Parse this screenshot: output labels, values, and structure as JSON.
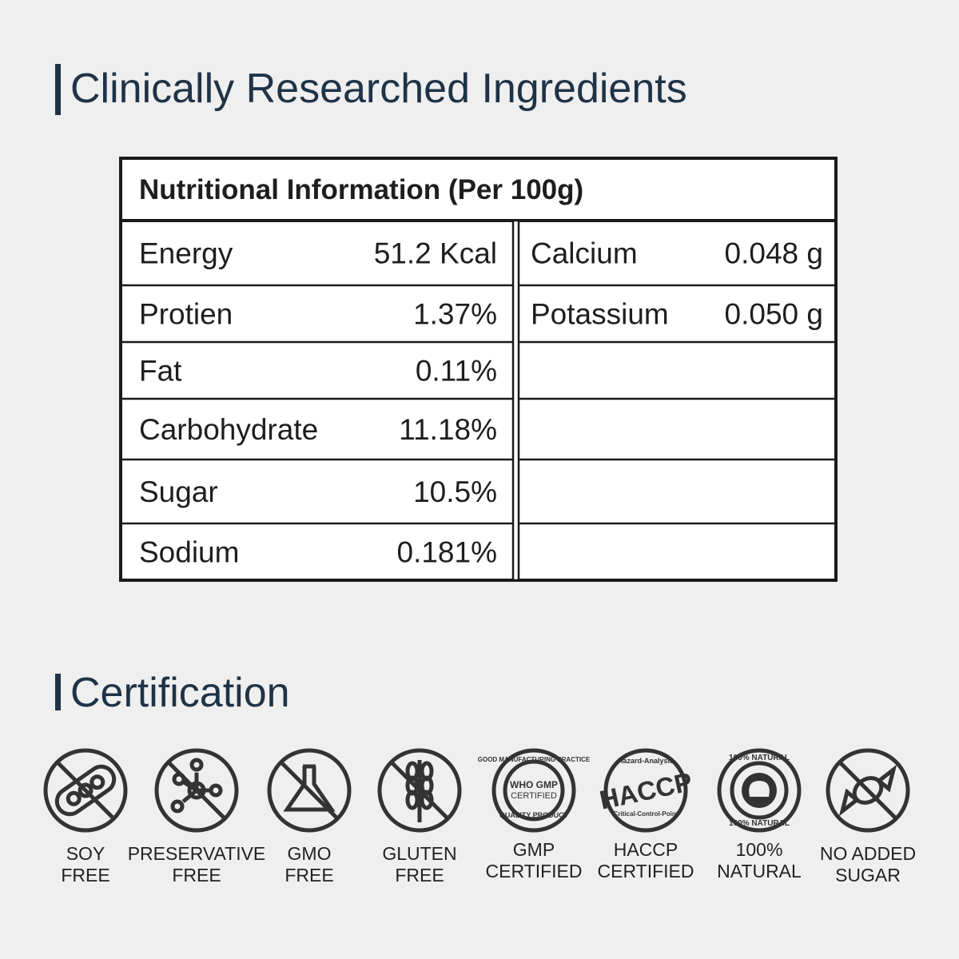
{
  "header": {
    "title": "Clinically Researched Ingredients"
  },
  "table": {
    "title": "Nutritional Information (Per 100g)",
    "left": [
      [
        "Energy",
        "51.2 Kcal"
      ],
      [
        "Protien",
        "1.37%"
      ],
      [
        "Fat",
        "0.11%"
      ],
      [
        "Carbohydrate",
        "11.18%"
      ],
      [
        "Sugar",
        "10.5%"
      ],
      [
        "Sodium",
        "0.181%"
      ]
    ],
    "right": [
      [
        "Calcium",
        "0.048 g"
      ],
      [
        "Potassium",
        "0.050 g"
      ]
    ]
  },
  "certification": {
    "title": "Certification",
    "items": [
      {
        "label": [
          "SOY",
          "FREE"
        ]
      },
      {
        "label": [
          "PRESERVATIVE",
          "FREE"
        ]
      },
      {
        "label": [
          "GMO",
          "FREE"
        ]
      },
      {
        "label": [
          "GLUTEN",
          "FREE"
        ]
      },
      {
        "label": [
          "GMP",
          "CERTIFIED"
        ],
        "badge": [
          "GOOD MANUFACTURING PRACTICE",
          "WHO GMP",
          "CERTIFIED",
          "QUALITY PRODUCT"
        ]
      },
      {
        "label": [
          "HACCP",
          "CERTIFIED"
        ],
        "badge": [
          "Hazard-Analysis",
          "HACCP",
          "Critical-Control-Point"
        ]
      },
      {
        "label": [
          "100%",
          "NATURAL"
        ],
        "badge": [
          "100% NATURAL",
          "100% NATURAL"
        ]
      },
      {
        "label": [
          "NO ADDED",
          "SUGAR"
        ]
      }
    ]
  }
}
